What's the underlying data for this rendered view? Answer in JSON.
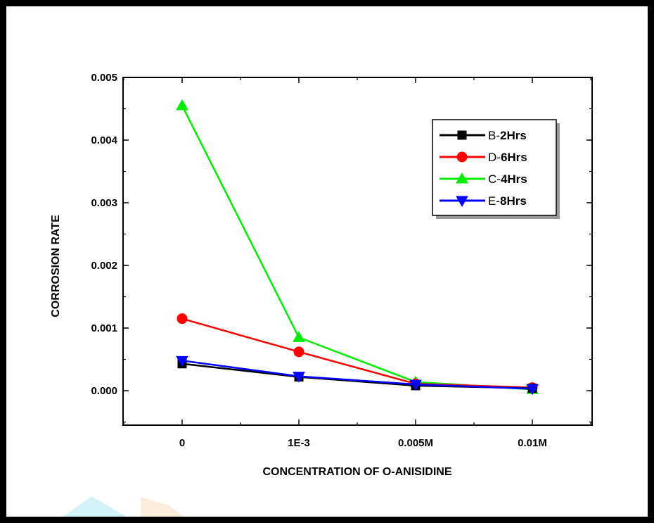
{
  "chart_data": {
    "type": "line",
    "categories": [
      "0",
      "1E-3",
      "0.005M",
      "0.01M"
    ],
    "xlabel": "CONCENTRATION OF O-ANISIDINE",
    "ylabel": "CORROSION RATE",
    "ylim": [
      -0.00055,
      0.005
    ],
    "yticks": [
      "0.000",
      "0.001",
      "0.002",
      "0.003",
      "0.004",
      "0.005"
    ],
    "ytick_values": [
      0,
      0.001,
      0.002,
      0.003,
      0.004,
      0.005
    ],
    "grid": false,
    "legend_position": "top-right",
    "series": [
      {
        "name_prefix": "B-",
        "name_suffix": "2Hrs",
        "color": "#000000",
        "marker": "square",
        "values": [
          0.00043,
          0.00022,
          8e-05,
          4e-05
        ]
      },
      {
        "name_prefix": "D-",
        "name_suffix": "6Hrs",
        "color": "#ff0000",
        "marker": "circle",
        "values": [
          0.00115,
          0.00062,
          0.00011,
          5e-05
        ]
      },
      {
        "name_prefix": "C-",
        "name_suffix": "4Hrs",
        "color": "#00ee00",
        "marker": "triangle-up",
        "values": [
          0.00455,
          0.00085,
          0.00014,
          2e-05
        ]
      },
      {
        "name_prefix": "E-",
        "name_suffix": "8Hrs",
        "color": "#0000ff",
        "marker": "triangle-down",
        "values": [
          0.00048,
          0.00023,
          0.0001,
          3e-05
        ]
      }
    ]
  }
}
